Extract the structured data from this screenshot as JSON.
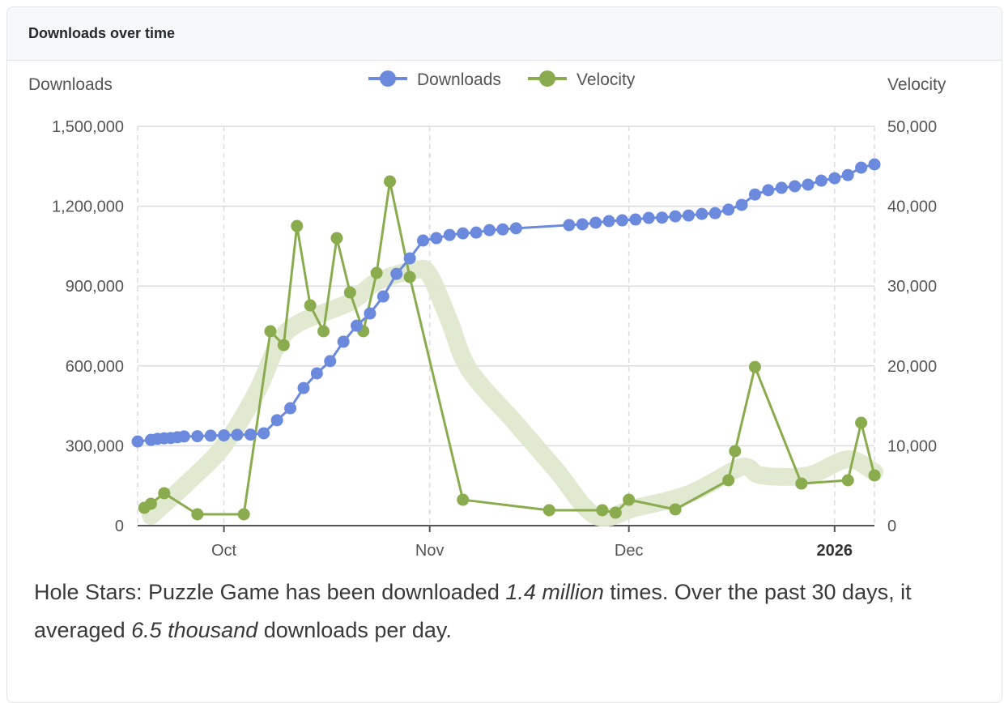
{
  "card": {
    "title": "Downloads over time"
  },
  "caption": {
    "part1": "Hole Stars: Puzzle Game has been downloaded ",
    "total": "1.4 million",
    "part2": " times. Over the past 30 days, it averaged ",
    "avg": "6.5 thousand",
    "part3": " downloads per day."
  },
  "chart_data": {
    "type": "line",
    "title": "Downloads over time",
    "xlabel": "",
    "ylabel": "Downloads",
    "y2label": "Velocity",
    "xlim": [
      "2025-09-18",
      "2026-01-07"
    ],
    "ylim": [
      0,
      1500000
    ],
    "y2lim": [
      0,
      50000
    ],
    "yticks": [
      "0",
      "300,000",
      "600,000",
      "900,000",
      "1,200,000",
      "1,500,000"
    ],
    "y2ticks": [
      "0",
      "10,000",
      "20,000",
      "30,000",
      "40,000",
      "50,000"
    ],
    "xticks": [
      {
        "date": "2025-10-01",
        "label": "Oct",
        "bold": false
      },
      {
        "date": "2025-11-01",
        "label": "Nov",
        "bold": false
      },
      {
        "date": "2025-12-01",
        "label": "Dec",
        "bold": false
      },
      {
        "date": "2026-01-01",
        "label": "2026",
        "bold": true
      }
    ],
    "grid": true,
    "legend_position": "top-center",
    "colors": {
      "downloads": "#6b8ade",
      "velocity": "#8aac4e",
      "trend": "#dfe8cf"
    },
    "series": [
      {
        "name": "Downloads",
        "axis": "left",
        "points": [
          [
            "2025-09-18",
            316000
          ],
          [
            "2025-09-20",
            322000
          ],
          [
            "2025-09-21",
            326000
          ],
          [
            "2025-09-22",
            328000
          ],
          [
            "2025-09-23",
            329000
          ],
          [
            "2025-09-24",
            332000
          ],
          [
            "2025-09-25",
            335000
          ],
          [
            "2025-09-27",
            336000
          ],
          [
            "2025-09-29",
            338000
          ],
          [
            "2025-10-01",
            339000
          ],
          [
            "2025-10-03",
            341000
          ],
          [
            "2025-10-05",
            342000
          ],
          [
            "2025-10-07",
            347000
          ],
          [
            "2025-10-09",
            396000
          ],
          [
            "2025-10-11",
            441000
          ],
          [
            "2025-10-13",
            517000
          ],
          [
            "2025-10-15",
            572000
          ],
          [
            "2025-10-17",
            618000
          ],
          [
            "2025-10-19",
            691000
          ],
          [
            "2025-10-21",
            751000
          ],
          [
            "2025-10-23",
            797000
          ],
          [
            "2025-10-25",
            861000
          ],
          [
            "2025-10-27",
            946000
          ],
          [
            "2025-10-29",
            1004000
          ],
          [
            "2025-10-31",
            1071000
          ],
          [
            "2025-11-02",
            1080000
          ],
          [
            "2025-11-04",
            1092000
          ],
          [
            "2025-11-06",
            1098000
          ],
          [
            "2025-11-08",
            1101000
          ],
          [
            "2025-11-10",
            1110000
          ],
          [
            "2025-11-12",
            1113000
          ],
          [
            "2025-11-14",
            1117000
          ],
          [
            "2025-11-22",
            1129000
          ],
          [
            "2025-11-24",
            1132000
          ],
          [
            "2025-11-26",
            1138000
          ],
          [
            "2025-11-28",
            1144000
          ],
          [
            "2025-11-30",
            1147000
          ],
          [
            "2025-12-02",
            1150000
          ],
          [
            "2025-12-04",
            1156000
          ],
          [
            "2025-12-06",
            1157000
          ],
          [
            "2025-12-08",
            1162000
          ],
          [
            "2025-12-10",
            1165000
          ],
          [
            "2025-12-12",
            1171000
          ],
          [
            "2025-12-14",
            1174000
          ],
          [
            "2025-12-16",
            1187000
          ],
          [
            "2025-12-18",
            1205000
          ],
          [
            "2025-12-20",
            1244000
          ],
          [
            "2025-12-22",
            1260000
          ],
          [
            "2025-12-24",
            1269000
          ],
          [
            "2025-12-26",
            1275000
          ],
          [
            "2025-12-28",
            1281000
          ],
          [
            "2025-12-30",
            1296000
          ],
          [
            "2026-01-01",
            1305000
          ],
          [
            "2026-01-03",
            1317000
          ],
          [
            "2026-01-05",
            1345000
          ],
          [
            "2026-01-07",
            1357000
          ]
        ]
      },
      {
        "name": "Velocity",
        "axis": "right",
        "points": [
          [
            "2025-09-19",
            2230
          ],
          [
            "2025-09-20",
            2740
          ],
          [
            "2025-09-22",
            4060
          ],
          [
            "2025-09-27",
            1420
          ],
          [
            "2025-10-04",
            1420
          ],
          [
            "2025-10-08",
            24340
          ],
          [
            "2025-10-10",
            22610
          ],
          [
            "2025-10-12",
            37520
          ],
          [
            "2025-10-14",
            27580
          ],
          [
            "2025-10-16",
            24340
          ],
          [
            "2025-10-18",
            36000
          ],
          [
            "2025-10-20",
            29200
          ],
          [
            "2025-10-22",
            24340
          ],
          [
            "2025-10-24",
            31640
          ],
          [
            "2025-10-26",
            43100
          ],
          [
            "2025-10-29",
            31130
          ],
          [
            "2025-11-06",
            3240
          ],
          [
            "2025-11-19",
            1930
          ],
          [
            "2025-11-27",
            1930
          ],
          [
            "2025-11-29",
            1620
          ],
          [
            "2025-12-01",
            3240
          ],
          [
            "2025-12-08",
            2030
          ],
          [
            "2025-12-16",
            5680
          ],
          [
            "2025-12-17",
            9330
          ],
          [
            "2025-12-20",
            19870
          ],
          [
            "2025-12-27",
            5270
          ],
          [
            "2026-01-03",
            5680
          ],
          [
            "2026-01-05",
            12880
          ],
          [
            "2026-01-07",
            6290
          ]
        ]
      },
      {
        "name": "Velocity trend",
        "axis": "right",
        "points": [
          [
            "2025-09-20",
            1220
          ],
          [
            "2025-09-25",
            4970
          ],
          [
            "2025-10-01",
            10040
          ],
          [
            "2025-10-06",
            16830
          ],
          [
            "2025-10-09",
            22510
          ],
          [
            "2025-10-12",
            25250
          ],
          [
            "2025-10-20",
            27990
          ],
          [
            "2025-10-24",
            30520
          ],
          [
            "2025-10-30",
            32040
          ],
          [
            "2025-11-01",
            31330
          ],
          [
            "2025-11-04",
            25550
          ],
          [
            "2025-11-07",
            19470
          ],
          [
            "2025-11-14",
            12780
          ],
          [
            "2025-11-20",
            7000
          ],
          [
            "2025-11-26",
            1220
          ],
          [
            "2025-12-02",
            2230
          ],
          [
            "2025-12-10",
            3950
          ],
          [
            "2025-12-17",
            7000
          ],
          [
            "2025-12-19",
            7300
          ],
          [
            "2025-12-21",
            6290
          ],
          [
            "2025-12-28",
            6290
          ],
          [
            "2026-01-03",
            8310
          ],
          [
            "2026-01-07",
            6690
          ]
        ]
      }
    ]
  }
}
